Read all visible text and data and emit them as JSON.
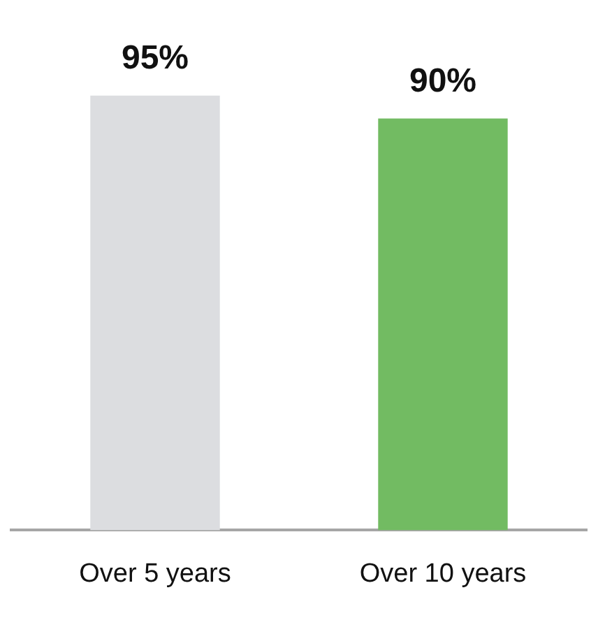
{
  "chart_data": {
    "type": "bar",
    "categories": [
      "Over 5 years",
      "Over 10 years"
    ],
    "values": [
      95,
      90
    ],
    "colors": [
      "#dcdde0",
      "#72bb62"
    ],
    "value_labels": [
      "95%",
      "90%"
    ],
    "tick_labels": "x",
    "grid": false,
    "legend": false
  }
}
